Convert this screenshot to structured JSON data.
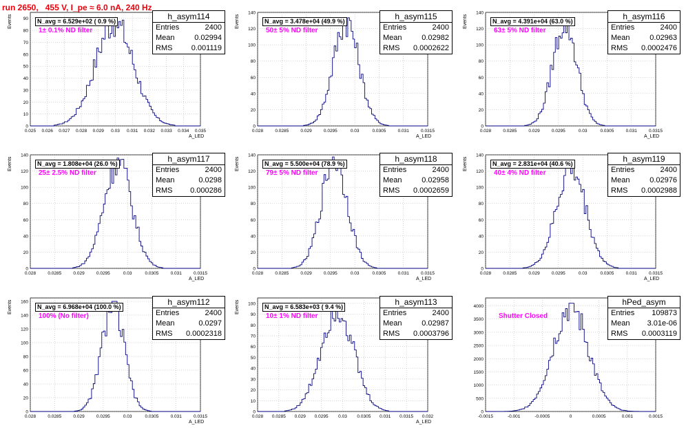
{
  "header": {
    "run": "run 2650,",
    "voltage": "455 V, I_pe",
    "approx": "≈",
    "current": "6.0 nA, 240 Hz"
  },
  "chart_data": [
    {
      "type": "histogram",
      "name": "h_asym114",
      "n_avg_text": "N_avg = 6.529e+02 ( 0.9 %)",
      "filter_text": "1± 0.1% ND filter",
      "stats": {
        "entries_label": "Entries",
        "entries": "2400",
        "mean_label": "Mean",
        "mean": "0.02994",
        "rms_label": "RMS",
        "rms": "0.001119"
      },
      "xlabel": "A_LED",
      "ylabel": "Events",
      "xlim": [
        0.025,
        0.035
      ],
      "ylim": [
        0,
        95
      ],
      "xticks": [
        "0.025",
        "0.026",
        "0.027",
        "0.028",
        "0.029",
        "0.03",
        "0.031",
        "0.032",
        "0.033",
        "0.034",
        "0.035"
      ],
      "yticks": [
        0,
        10,
        20,
        30,
        40,
        50,
        60,
        70,
        80,
        90
      ],
      "mean": 0.02994,
      "rms": 0.001119,
      "peak": 90
    },
    {
      "type": "histogram",
      "name": "h_asym115",
      "n_avg_text": "N_avg = 3.478e+04 (49.9 %)",
      "filter_text": "50± 5% ND filter",
      "stats": {
        "entries_label": "Entries",
        "entries": "2400",
        "mean_label": "Mean",
        "mean": "0.02982",
        "rms_label": "RMS",
        "rms": "0.0002622"
      },
      "xlabel": "A_LED",
      "ylabel": "Events",
      "xlim": [
        0.028,
        0.0315
      ],
      "ylim": [
        0,
        140
      ],
      "xticks": [
        "0.028",
        "0.0285",
        "0.029",
        "0.0295",
        "0.03",
        "0.0305",
        "0.031",
        "0.0315"
      ],
      "yticks": [
        0,
        20,
        40,
        60,
        80,
        100,
        120,
        140
      ],
      "mean": 0.02982,
      "rms": 0.0002622,
      "peak": 134
    },
    {
      "type": "histogram",
      "name": "h_asym116",
      "n_avg_text": "N_avg = 4.391e+04 (63.0 %)",
      "filter_text": "63± 5% ND filter",
      "stats": {
        "entries_label": "Entries",
        "entries": "2400",
        "mean_label": "Mean",
        "mean": "0.02963",
        "rms_label": "RMS",
        "rms": "0.0002476"
      },
      "xlabel": "A_LED",
      "ylabel": "Events",
      "xlim": [
        0.028,
        0.0315
      ],
      "ylim": [
        0,
        140
      ],
      "xticks": [
        "0.028",
        "0.0285",
        "0.029",
        "0.0295",
        "0.03",
        "0.0305",
        "0.031",
        "0.0315"
      ],
      "yticks": [
        0,
        20,
        40,
        60,
        80,
        100,
        120,
        140
      ],
      "mean": 0.02963,
      "rms": 0.0002476,
      "peak": 132
    },
    {
      "type": "histogram",
      "name": "h_asym117",
      "n_avg_text": "N_avg = 1.808e+04 (26.0 %)",
      "filter_text": "25± 2.5% ND filter",
      "stats": {
        "entries_label": "Entries",
        "entries": "2400",
        "mean_label": "Mean",
        "mean": "0.0298",
        "rms_label": "RMS",
        "rms": "0.000286"
      },
      "xlabel": "A_LED",
      "ylabel": "Events",
      "xlim": [
        0.028,
        0.0315
      ],
      "ylim": [
        0,
        140
      ],
      "xticks": [
        "0.028",
        "0.0285",
        "0.029",
        "0.0295",
        "0.03",
        "0.0305",
        "0.031",
        "0.0315"
      ],
      "yticks": [
        0,
        20,
        40,
        60,
        80,
        100,
        120,
        140
      ],
      "mean": 0.0298,
      "rms": 0.000286,
      "peak": 136
    },
    {
      "type": "histogram",
      "name": "h_asym118",
      "n_avg_text": "N_avg = 5.500e+04 (78.9 %)",
      "filter_text": "79± 5% ND filter",
      "stats": {
        "entries_label": "Entries",
        "entries": "2400",
        "mean_label": "Mean",
        "mean": "0.02958",
        "rms_label": "RMS",
        "rms": "0.0002659"
      },
      "xlabel": "A_LED",
      "ylabel": "Events",
      "xlim": [
        0.028,
        0.0315
      ],
      "ylim": [
        0,
        140
      ],
      "xticks": [
        "0.028",
        "0.0285",
        "0.029",
        "0.0295",
        "0.03",
        "0.0305",
        "0.031",
        "0.0315"
      ],
      "yticks": [
        0,
        20,
        40,
        60,
        80,
        100,
        120,
        140
      ],
      "mean": 0.02958,
      "rms": 0.0002659,
      "peak": 140
    },
    {
      "type": "histogram",
      "name": "h_asym119",
      "n_avg_text": "N_avg = 2.831e+04 (40.6 %)",
      "filter_text": "40± 4% ND filter",
      "stats": {
        "entries_label": "Entries",
        "entries": "2400",
        "mean_label": "Mean",
        "mean": "0.02976",
        "rms_label": "RMS",
        "rms": "0.0002988"
      },
      "xlabel": "A_LED",
      "ylabel": "Events",
      "xlim": [
        0.028,
        0.0315
      ],
      "ylim": [
        0,
        140
      ],
      "xticks": [
        "0.028",
        "0.0285",
        "0.029",
        "0.0295",
        "0.03",
        "0.0305",
        "0.031",
        "0.0315"
      ],
      "yticks": [
        0,
        20,
        40,
        60,
        80,
        100,
        120,
        140
      ],
      "mean": 0.02976,
      "rms": 0.0002988,
      "peak": 128
    },
    {
      "type": "histogram",
      "name": "h_asym112",
      "n_avg_text": "N_avg = 6.968e+04 (100.0 %)",
      "filter_text": "100% (No filter)",
      "stats": {
        "entries_label": "Entries",
        "entries": "2400",
        "mean_label": "Mean",
        "mean": "0.0297",
        "rms_label": "RMS",
        "rms": "0.0002318"
      },
      "xlabel": "A_LED",
      "ylabel": "Events",
      "xlim": [
        0.028,
        0.0315
      ],
      "ylim": [
        0,
        165
      ],
      "xticks": [
        "0.028",
        "0.0285",
        "0.029",
        "0.0295",
        "0.03",
        "0.0305",
        "0.031",
        "0.0315"
      ],
      "yticks": [
        0,
        20,
        40,
        60,
        80,
        100,
        120,
        140,
        160
      ],
      "mean": 0.0297,
      "rms": 0.0002318,
      "peak": 160
    },
    {
      "type": "histogram",
      "name": "h_asym113",
      "n_avg_text": "N_avg = 6.583e+03 ( 9.4 %)",
      "filter_text": "10± 1% ND filter",
      "stats": {
        "entries_label": "Entries",
        "entries": "2400",
        "mean_label": "Mean",
        "mean": "0.02987",
        "rms_label": "RMS",
        "rms": "0.0003796"
      },
      "xlabel": "A_LED",
      "ylabel": "Events",
      "xlim": [
        0.028,
        0.032
      ],
      "ylim": [
        0,
        105
      ],
      "xticks": [
        "0.028",
        "0.0285",
        "0.029",
        "0.0295",
        "0.03",
        "0.0305",
        "0.031",
        "0.0315",
        "0.032"
      ],
      "yticks": [
        0,
        10,
        20,
        30,
        40,
        50,
        60,
        70,
        80,
        90,
        100
      ],
      "mean": 0.02987,
      "rms": 0.0003796,
      "peak": 100
    },
    {
      "type": "histogram",
      "name": "hPed_asym",
      "n_avg_text": "",
      "filter_text": "Shutter Closed",
      "stats": {
        "entries_label": "Entries",
        "entries": "109873",
        "mean_label": "Mean",
        "mean": "3.01e-06",
        "rms_label": "RMS",
        "rms": "0.0003119"
      },
      "xlabel": "",
      "ylabel": "",
      "xlim": [
        -0.0015,
        0.0015
      ],
      "ylim": [
        0,
        4300
      ],
      "xticks": [
        "-0.0015",
        "-0.001",
        "-0.0005",
        "0",
        "0.0005",
        "0.001",
        "0.0015"
      ],
      "yticks": [
        0,
        500,
        1000,
        1500,
        2000,
        2500,
        3000,
        3500,
        4000
      ],
      "mean": 0.0,
      "rms": 0.0003119,
      "peak": 4100
    }
  ]
}
